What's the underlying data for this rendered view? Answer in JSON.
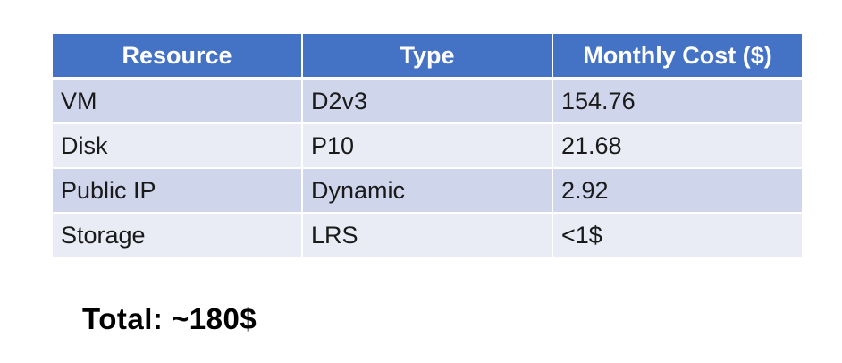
{
  "table": {
    "headers": [
      "Resource",
      "Type",
      "Monthly Cost ($)"
    ],
    "rows": [
      [
        "VM",
        "D2v3",
        "154.76"
      ],
      [
        "Disk",
        "P10",
        "21.68"
      ],
      [
        "Public IP",
        "Dynamic",
        "2.92"
      ],
      [
        "Storage",
        "LRS",
        "<1$"
      ]
    ],
    "colors": {
      "header_bg": "#4472c4",
      "row_band_dark": "#cfd5ea",
      "row_band_light": "#e9ebf5"
    }
  },
  "total": {
    "text": "Total: ~180$"
  }
}
